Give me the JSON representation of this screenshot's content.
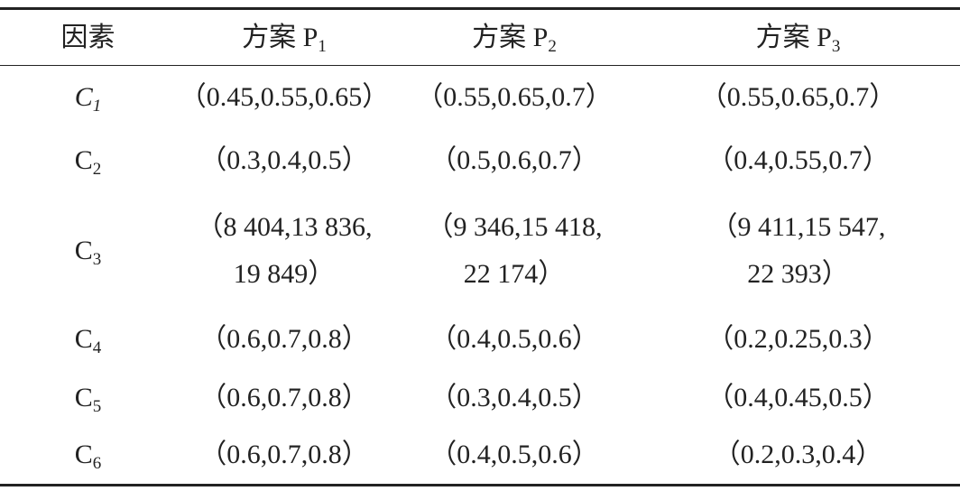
{
  "table": {
    "header": [
      {
        "text": "因素"
      },
      {
        "text": "方案 P",
        "sub": "1"
      },
      {
        "text": "方案 P",
        "sub": "2"
      },
      {
        "text": "方案 P",
        "sub": "3"
      }
    ],
    "rows": [
      {
        "label": {
          "text": "C",
          "sub": "1"
        },
        "cells": [
          [
            "（0.45,0.55,0.65）"
          ],
          [
            "（0.55,0.65,0.7）"
          ],
          [
            "（0.55,0.65,0.7）"
          ]
        ]
      },
      {
        "label": {
          "text": "C",
          "sub": "2"
        },
        "cells": [
          [
            "（0.3,0.4,0.5）"
          ],
          [
            "（0.5,0.6,0.7）"
          ],
          [
            "（0.4,0.55,0.7）"
          ]
        ]
      },
      {
        "label": {
          "text": "C",
          "sub": "3"
        },
        "cells": [
          [
            "（8 404,13 836,",
            "19 849）"
          ],
          [
            "（9 346,15 418,",
            "22 174）"
          ],
          [
            "（9 411,15 547,",
            "22 393）"
          ]
        ]
      },
      {
        "label": {
          "text": "C",
          "sub": "4"
        },
        "cells": [
          [
            "（0.6,0.7,0.8）"
          ],
          [
            "（0.4,0.5,0.6）"
          ],
          [
            "（0.2,0.25,0.3）"
          ]
        ]
      },
      {
        "label": {
          "text": "C",
          "sub": "5"
        },
        "cells": [
          [
            "（0.6,0.7,0.8）"
          ],
          [
            "（0.3,0.4,0.5）"
          ],
          [
            "（0.4,0.45,0.5）"
          ]
        ]
      },
      {
        "label": {
          "text": "C",
          "sub": "6"
        },
        "cells": [
          [
            "（0.6,0.7,0.8）"
          ],
          [
            "（0.4,0.5,0.6）"
          ],
          [
            "（0.2,0.3,0.4）"
          ]
        ]
      }
    ]
  }
}
